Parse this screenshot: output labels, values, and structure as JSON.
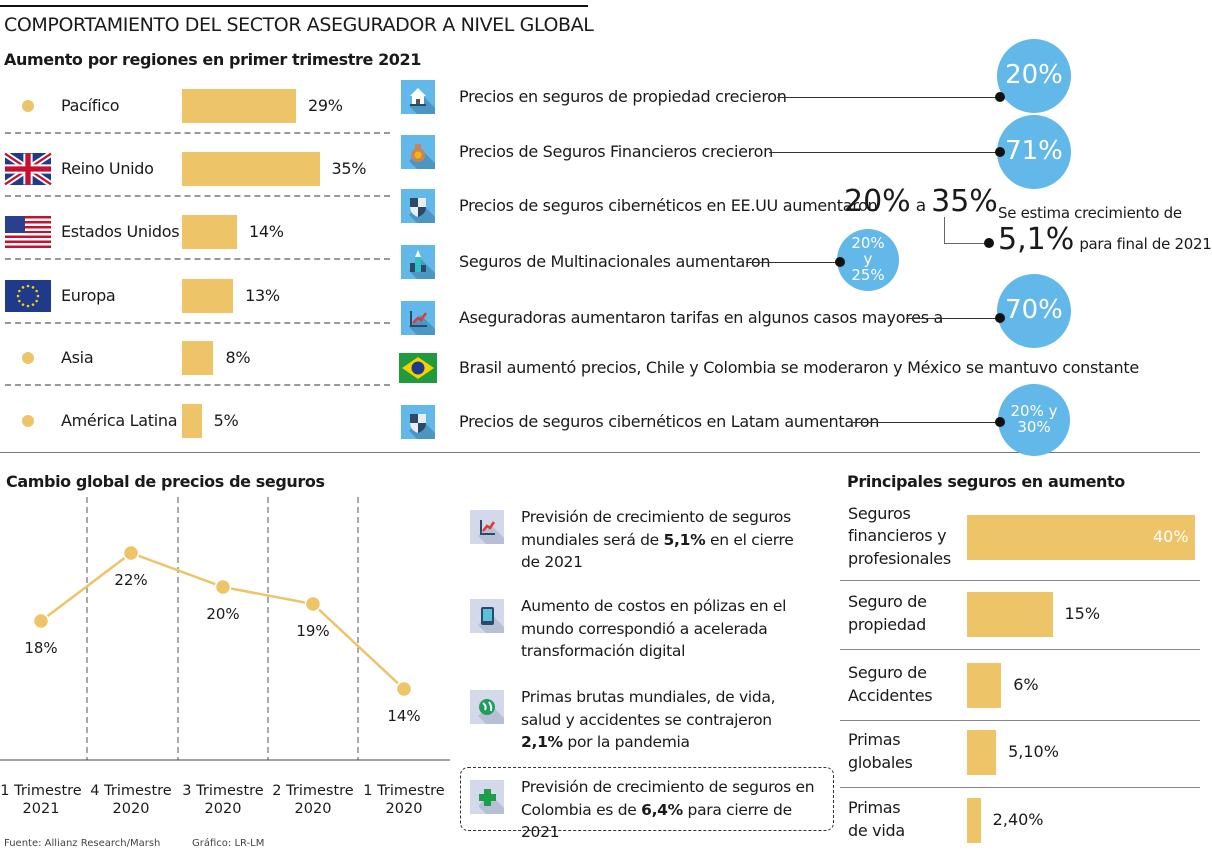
{
  "header": {
    "title": "COMPORTAMIENTO DEL SECTOR ASEGURADOR A NIVEL GLOBAL",
    "subtitle": "Aumento por regiones en primer trimestre 2021"
  },
  "colors": {
    "bar": "#EDC468",
    "circle": "#62B8E8"
  },
  "facts": [
    {
      "icon": "house-icon",
      "text": "Precios en seguros de propiedad crecieron",
      "value": "20%"
    },
    {
      "icon": "money-bag-icon",
      "text": "Precios de Seguros Financieros crecieron",
      "value": "71%"
    },
    {
      "icon": "shield-icon",
      "text": "Precios de seguros cibernéticos en EE.UU aumentaron",
      "value_a": "20%",
      "conj": "a",
      "value_b": "35%"
    },
    {
      "icon": "buildings-icon",
      "text": "Seguros de Multinacionales aumentaron",
      "value": "20% y 25%"
    },
    {
      "icon": "growth-chart-icon",
      "text": "Aseguradoras aumentaron tarifas en algunos casos mayores a",
      "value": "70%"
    },
    {
      "icon": "brazil-flag-icon",
      "text": "Brasil aumentó precios, Chile y Colombia se moderaron y México se mantuvo constante"
    },
    {
      "icon": "shield-icon",
      "text": "Precios de seguros cibernéticos en Latam aumentaron",
      "value": "20% y 30%"
    }
  ],
  "estimate": {
    "line1": "Se estima crecimiento de",
    "value": "5,1%",
    "line2": "para final de 2021"
  },
  "notes": [
    {
      "icon": "growth-chart-icon",
      "pre": "Previsión de crecimiento de seguros mundiales será de ",
      "bold": "5,1%",
      "post": " en el cierre de 2021"
    },
    {
      "icon": "tablet-icon",
      "pre": "Aumento de costos en pólizas en el mundo correspondió a acelerada transformación digital",
      "bold": "",
      "post": ""
    },
    {
      "icon": "globe-icon",
      "pre": "Primas brutas mundiales, de vida, salud y accidentes se contrajeron ",
      "bold": "2,1%",
      "post": " por la pandemia"
    },
    {
      "icon": "plus-icon",
      "pre": "Previsión de crecimiento de seguros en Colombia es de ",
      "bold": "6,4%",
      "post": " para cierre de 2021"
    }
  ],
  "footer": {
    "source": "Fuente: Allianz Research/Marsh",
    "credit": "Gráfico: LR-LM"
  },
  "chart_data": [
    {
      "type": "bar",
      "title": "Aumento por regiones en primer trimestre 2021",
      "categories": [
        "Pacífico",
        "Reino Unido",
        "Estados Unidos",
        "Europa",
        "Asia",
        "América Latina"
      ],
      "values": [
        29,
        35,
        14,
        13,
        8,
        5
      ],
      "labels": [
        "29%",
        "35%",
        "14%",
        "13%",
        "8%",
        "5%"
      ],
      "icons": [
        "dot-icon",
        "uk-flag-icon",
        "us-flag-icon",
        "eu-flag-icon",
        "dot-icon",
        "dot-icon"
      ]
    },
    {
      "type": "line",
      "title": "Cambio global de precios de seguros",
      "categories": [
        [
          "1 Trimestre",
          "2021"
        ],
        [
          "4 Trimestre",
          "2020"
        ],
        [
          "3 Trimestre",
          "2020"
        ],
        [
          "2 Trimestre",
          "2020"
        ],
        [
          "1 Trimestre",
          "2020"
        ]
      ],
      "values": [
        18,
        22,
        20,
        19,
        14
      ],
      "labels": [
        "18%",
        "22%",
        "20%",
        "19%",
        "14%"
      ]
    },
    {
      "type": "bar",
      "title": "Principales seguros en aumento",
      "categories": [
        [
          "Seguros",
          "financieros y",
          "profesionales"
        ],
        [
          "Seguro de",
          "propiedad"
        ],
        [
          "Seguro de",
          "Accidentes"
        ],
        [
          "Primas",
          "globales"
        ],
        [
          "Primas",
          "de vida"
        ]
      ],
      "values": [
        40,
        15,
        6,
        5.1,
        2.4
      ],
      "labels": [
        "40%",
        "15%",
        "6%",
        "5,10%",
        "2,40%"
      ]
    }
  ]
}
